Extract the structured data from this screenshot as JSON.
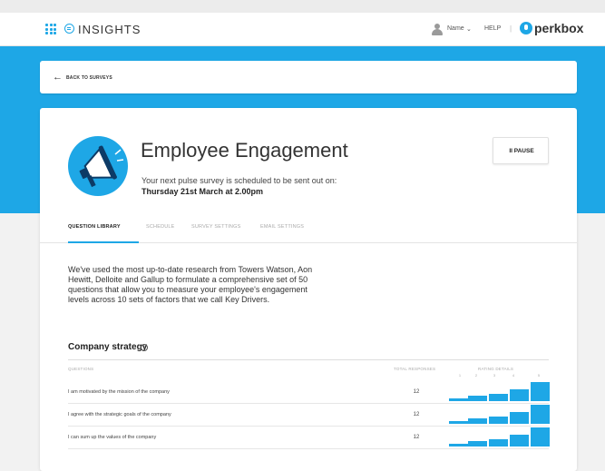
{
  "header": {
    "brand": "INSIGHTS",
    "user_name": "Name",
    "help": "HELP",
    "separator": "|",
    "company": "perkbox"
  },
  "back": {
    "label": "BACK TO SURVEYS"
  },
  "survey": {
    "title": "Employee Engagement",
    "next_line": "Your next pulse survey is scheduled to be sent out on:",
    "next_date": "Thursday 21st March at 2.00pm",
    "pause_label": "II PAUSE"
  },
  "tabs": [
    {
      "label": "QUESTION LIBRARY",
      "active": true
    },
    {
      "label": "SCHEDULE",
      "active": false
    },
    {
      "label": "SURVEY SETTINGS",
      "active": false
    },
    {
      "label": "EMAIL SETTINGS",
      "active": false
    }
  ],
  "intro": "We've used the most up-to-date research from Towers Watson, Aon Hewitt, Delloite and Gallup to formulate a comprehensive set of 50 questions that allow you to measure your employee's engagement levels across 10 sets of factors that we call Key Drivers.",
  "section": {
    "title": "Company strategy",
    "info": "i"
  },
  "table": {
    "headers": {
      "questions": "QUESTIONS",
      "responses": "TOTAL RESPONSES",
      "rating": "RATING DETAILS"
    },
    "scale": [
      "1",
      "2",
      "3",
      "4",
      "5"
    ],
    "rows": [
      {
        "question": "I am motivated by the mission of the company",
        "responses": "12",
        "ratings": [
          0.15,
          0.25,
          0.38,
          0.6,
          0.95
        ]
      },
      {
        "question": "I agree with the strategic goals of the company",
        "responses": "12",
        "ratings": [
          0.15,
          0.25,
          0.38,
          0.6,
          0.95
        ]
      },
      {
        "question": "I can sum up the values of the company",
        "responses": "12",
        "ratings": [
          0.15,
          0.25,
          0.38,
          0.6,
          0.95
        ]
      }
    ]
  },
  "colors": {
    "accent": "#1ea7e6",
    "icon_dark": "#0d3b66"
  }
}
